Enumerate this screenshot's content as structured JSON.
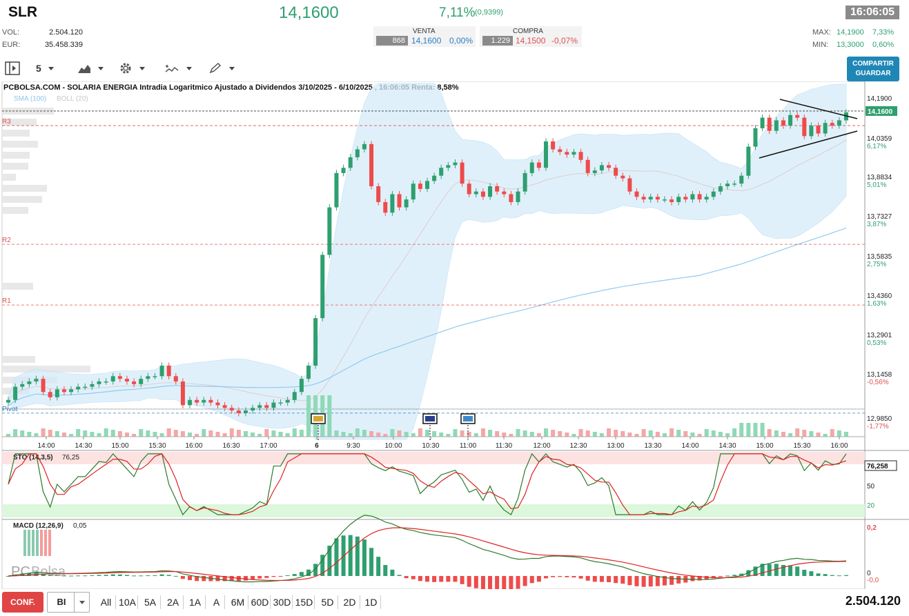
{
  "header": {
    "symbol": "SLR",
    "price": "14,1600",
    "change_pct": "7,11%",
    "change_abs": "(0,9399)",
    "time": "16:06:05",
    "vol_label": "VOL:",
    "vol_value": "2.504.120",
    "eur_label": "EUR:",
    "eur_value": "35.458.339",
    "venta_label": "VENTA",
    "venta_qty": "868",
    "venta_price": "14,1600",
    "venta_pct": "0,00%",
    "compra_label": "COMPRA",
    "compra_qty": "1.229",
    "compra_price": "14,1500",
    "compra_pct": "-0,07%",
    "max_label": "MAX:",
    "max_value": "14,1900",
    "max_pct": "7,33%",
    "min_label": "MIN:",
    "min_value": "13,3000",
    "min_pct": "0,60%"
  },
  "toolbar": {
    "interval": "5",
    "share_line1": "COMPARTIR",
    "share_line2": "GUARDAR"
  },
  "footer": {
    "config_label": "CONF.",
    "select_value": "BI",
    "ranges": [
      "All",
      "10A",
      "5A",
      "2A",
      "1A",
      "A",
      "6M",
      "60D",
      "30D",
      "15D",
      "5D",
      "2D",
      "1D"
    ],
    "volume": "2.504.120"
  },
  "chart_data": {
    "type": "candlestick",
    "title": "PCBOLSA.COM - SOLARIA ENERGIA Intradia Logaritmico Ajustado a Dividendos 3/10/2025 - 6/10/2025 , 16:06:05 Renta: 8,58%",
    "indicator_labels": [
      "SMA (100)",
      "BOLL (20)"
    ],
    "y_ticks": [
      "14,1900",
      "14,0359",
      "13,8834",
      "13,7327",
      "13,5835",
      "13,4360",
      "13,2901",
      "13,1458",
      "12,9850"
    ],
    "y_tick_pcts": [
      "6,17%",
      "5,01%",
      "3,87%",
      "2,75%",
      "1,63%",
      "0,53%",
      "-0,56%",
      "-1,77%"
    ],
    "ylim": [
      12.97,
      14.22
    ],
    "last_price_label": "14,1600",
    "last_price": 14.16,
    "x_ticks": [
      "14:00",
      "14:30",
      "15:00",
      "15:30",
      "16:00",
      "16:30",
      "17:00",
      "6",
      "9:30",
      "10:00",
      "10:30",
      "11:00",
      "11:30",
      "12:00",
      "12:30",
      "13:00",
      "13:30",
      "14:00",
      "14:30",
      "15:00",
      "15:30",
      "16:00"
    ],
    "levels": [
      {
        "name": "R3",
        "value": 14.11
      },
      {
        "name": "R2",
        "value": 13.66
      },
      {
        "name": "R1",
        "value": 13.43
      },
      {
        "name": "Pivot",
        "value": 13.02
      }
    ],
    "closes": [
      13.07,
      13.12,
      13.13,
      13.14,
      13.15,
      13.1,
      13.08,
      13.11,
      13.1,
      13.11,
      13.12,
      13.12,
      13.13,
      13.14,
      13.14,
      13.16,
      13.15,
      13.14,
      13.13,
      13.15,
      13.16,
      13.16,
      13.2,
      13.16,
      13.14,
      13.05,
      13.07,
      13.06,
      13.07,
      13.06,
      13.05,
      13.04,
      13.03,
      13.02,
      13.03,
      13.04,
      13.05,
      13.04,
      13.06,
      13.06,
      13.07,
      13.1,
      13.15,
      13.2,
      13.38,
      13.62,
      13.8,
      13.93,
      13.95,
      13.99,
      14.02,
      14.04,
      13.88,
      13.82,
      13.78,
      13.85,
      13.8,
      13.83,
      13.89,
      13.87,
      13.9,
      13.92,
      13.95,
      13.96,
      13.97,
      13.89,
      13.85,
      13.86,
      13.84,
      13.88,
      13.86,
      13.85,
      13.82,
      13.86,
      13.93,
      13.97,
      13.95,
      14.05,
      14.02,
      14.01,
      14.0,
      14.01,
      13.98,
      13.93,
      13.94,
      13.96,
      13.95,
      13.92,
      13.91,
      13.86,
      13.84,
      13.83,
      13.84,
      13.83,
      13.83,
      13.82,
      13.84,
      13.83,
      13.85,
      13.83,
      13.84,
      13.86,
      13.88,
      13.89,
      13.89,
      13.92,
      14.03,
      14.1,
      14.14,
      14.09,
      14.13,
      14.11,
      14.15,
      14.14,
      14.07,
      14.11,
      14.08,
      14.12,
      14.11,
      14.13,
      14.16
    ],
    "sto_label": "STO (14,3,5)",
    "sto_value": "76,25",
    "sto_last": "76,258",
    "sto_ticks": [
      "50",
      "20"
    ],
    "macd_label": "MACD (12,26,9)",
    "macd_value": "0,05",
    "macd_ticks": [
      "0,2",
      "0",
      "-0,0"
    ]
  }
}
